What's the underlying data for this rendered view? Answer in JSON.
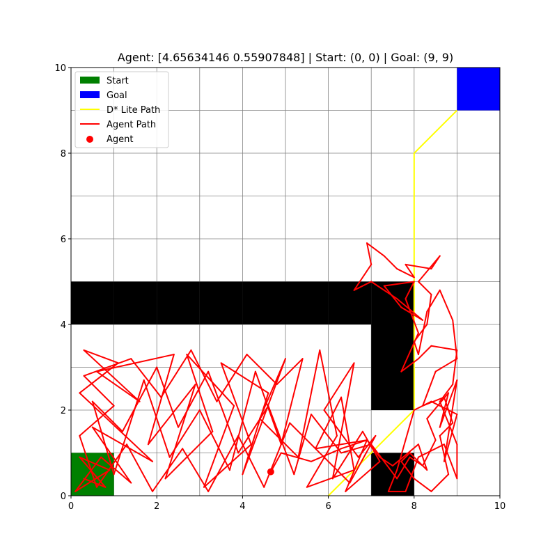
{
  "chart_data": {
    "type": "line",
    "title": "Agent: [4.65634146 0.55907848] | Start: (0, 0) | Goal: (9, 9)",
    "xlabel": "",
    "ylabel": "",
    "xlim": [
      0,
      10
    ],
    "ylim": [
      0,
      10
    ],
    "grid": true,
    "x_ticks": [
      "0",
      "2",
      "4",
      "6",
      "8",
      "10"
    ],
    "y_ticks": [
      "0",
      "2",
      "4",
      "6",
      "8",
      "10"
    ],
    "legend_position": "top-left",
    "legend": [
      {
        "label": "Start",
        "kind": "patch",
        "color": "#008000"
      },
      {
        "label": "Goal",
        "kind": "patch",
        "color": "#0000ff"
      },
      {
        "label": "D* Lite Path",
        "kind": "line",
        "color": "#ffff00"
      },
      {
        "label": "Agent Path",
        "kind": "line",
        "color": "#ff0000"
      },
      {
        "label": "Agent",
        "kind": "marker",
        "color": "#ff0000"
      }
    ],
    "start_cell": [
      0,
      0
    ],
    "goal_cell": [
      9,
      9
    ],
    "obstacle_cells": [
      [
        0,
        4
      ],
      [
        1,
        4
      ],
      [
        2,
        4
      ],
      [
        3,
        4
      ],
      [
        4,
        4
      ],
      [
        5,
        4
      ],
      [
        6,
        4
      ],
      [
        7,
        4
      ],
      [
        7,
        3
      ],
      [
        7,
        2
      ],
      [
        7,
        0
      ]
    ],
    "dstar_path": [
      [
        6,
        0
      ],
      [
        8,
        2
      ],
      [
        8,
        8
      ],
      [
        9,
        9
      ]
    ],
    "agent_position": [
      4.65634146,
      0.55907848
    ],
    "agent_path": [
      [
        0.3,
        0.4
      ],
      [
        0.8,
        0.2
      ],
      [
        0.2,
        0.9
      ],
      [
        0.9,
        0.6
      ],
      [
        0.1,
        0.1
      ],
      [
        0.7,
        0.9
      ],
      [
        1.4,
        0.3
      ],
      [
        0.5,
        1.6
      ],
      [
        1.9,
        0.8
      ],
      [
        0.2,
        2.4
      ],
      [
        1.1,
        3.1
      ],
      [
        0.3,
        3.4
      ],
      [
        1.6,
        2.2
      ],
      [
        0.6,
        2.9
      ],
      [
        2.4,
        3.3
      ],
      [
        1.8,
        1.2
      ],
      [
        2.9,
        2.6
      ],
      [
        2.2,
        0.4
      ],
      [
        3.3,
        1.5
      ],
      [
        2.7,
        3.3
      ],
      [
        3.8,
        2.1
      ],
      [
        3.1,
        0.2
      ],
      [
        4.2,
        1.2
      ],
      [
        3.5,
        3.1
      ],
      [
        4.6,
        2.4
      ],
      [
        4.0,
        0.5
      ],
      [
        5.0,
        3.2
      ],
      [
        4.4,
        1.8
      ],
      [
        5.3,
        0.9
      ],
      [
        5.8,
        3.4
      ],
      [
        6.2,
        1.4
      ],
      [
        5.5,
        0.2
      ],
      [
        6.6,
        0.6
      ],
      [
        6.3,
        2.3
      ],
      [
        5.7,
        1.1
      ],
      [
        6.9,
        1.3
      ],
      [
        6.4,
        0.1
      ],
      [
        7.2,
        0.8
      ],
      [
        6.8,
        1.5
      ],
      [
        6.1,
        0.4
      ],
      [
        6.6,
        3.1
      ],
      [
        5.9,
        2.0
      ],
      [
        6.7,
        0.9
      ],
      [
        7.1,
        1.4
      ],
      [
        6.5,
        0.3
      ],
      [
        5.9,
        0.9
      ],
      [
        5.1,
        1.7
      ],
      [
        4.5,
        0.2
      ],
      [
        3.9,
        1.4
      ],
      [
        3.2,
        0.1
      ],
      [
        2.6,
        1.1
      ],
      [
        1.9,
        0.1
      ],
      [
        1.3,
        1.2
      ],
      [
        0.6,
        0.2
      ],
      [
        0.2,
        1.4
      ],
      [
        1.0,
        2.1
      ],
      [
        0.3,
        2.8
      ],
      [
        1.4,
        3.2
      ],
      [
        2.1,
        2.3
      ],
      [
        2.8,
        3.4
      ],
      [
        3.4,
        2.2
      ],
      [
        4.1,
        3.3
      ],
      [
        4.8,
        2.6
      ],
      [
        5.4,
        3.2
      ],
      [
        4.9,
        1.2
      ],
      [
        4.3,
        2.9
      ],
      [
        3.7,
        0.6
      ],
      [
        3.0,
        2.0
      ],
      [
        2.3,
        0.9
      ],
      [
        1.7,
        2.7
      ],
      [
        1.0,
        0.5
      ],
      [
        0.5,
        2.2
      ],
      [
        1.2,
        1.5
      ],
      [
        2.0,
        3.0
      ],
      [
        2.5,
        1.6
      ],
      [
        3.2,
        2.9
      ],
      [
        3.9,
        1.0
      ],
      [
        4.6,
        2.1
      ],
      [
        5.2,
        0.5
      ],
      [
        5.6,
        1.9
      ],
      [
        6.3,
        1.0
      ],
      [
        7.0,
        1.2
      ],
      [
        7.6,
        0.4
      ],
      [
        7.9,
        0.9
      ],
      [
        8.2,
        0.7
      ],
      [
        8.5,
        1.3
      ],
      [
        8.3,
        1.8
      ],
      [
        8.8,
        2.4
      ],
      [
        8.6,
        1.6
      ],
      [
        9.0,
        2.7
      ],
      [
        8.7,
        0.8
      ],
      [
        9.0,
        1.9
      ],
      [
        8.4,
        2.2
      ],
      [
        8.0,
        2.0
      ],
      [
        7.6,
        0.6
      ],
      [
        7.4,
        0.1
      ],
      [
        7.8,
        0.1
      ],
      [
        8.1,
        0.9
      ],
      [
        8.7,
        1.2
      ],
      [
        9.0,
        0.4
      ],
      [
        9.0,
        1.2
      ],
      [
        8.6,
        2.2
      ],
      [
        8.9,
        2.6
      ],
      [
        9.0,
        3.4
      ],
      [
        8.4,
        3.5
      ],
      [
        8.1,
        3.2
      ],
      [
        7.7,
        2.9
      ],
      [
        8.1,
        3.8
      ],
      [
        7.8,
        4.6
      ],
      [
        8.0,
        5.0
      ],
      [
        7.3,
        4.9
      ],
      [
        7.7,
        4.4
      ],
      [
        8.2,
        4.1
      ],
      [
        7.6,
        4.6
      ],
      [
        7.0,
        5.0
      ],
      [
        6.6,
        4.8
      ],
      [
        7.0,
        5.4
      ],
      [
        6.9,
        5.9
      ],
      [
        7.3,
        5.6
      ],
      [
        7.6,
        5.3
      ],
      [
        8.0,
        5.1
      ],
      [
        7.8,
        5.4
      ],
      [
        8.4,
        5.3
      ],
      [
        8.6,
        5.6
      ],
      [
        8.1,
        5.0
      ],
      [
        8.4,
        4.7
      ],
      [
        8.3,
        4.0
      ],
      [
        8.0,
        3.6
      ],
      [
        8.1,
        3.3
      ],
      [
        8.3,
        4.3
      ],
      [
        8.6,
        4.8
      ],
      [
        8.9,
        4.1
      ],
      [
        9.0,
        3.2
      ],
      [
        8.5,
        2.9
      ],
      [
        8.2,
        2.1
      ],
      [
        8.7,
        2.3
      ],
      [
        8.9,
        1.7
      ],
      [
        8.6,
        1.4
      ],
      [
        8.8,
        0.5
      ],
      [
        8.4,
        0.1
      ],
      [
        8.0,
        0.4
      ],
      [
        7.7,
        0.8
      ],
      [
        7.9,
        1.0
      ],
      [
        8.3,
        0.6
      ],
      [
        8.1,
        1.2
      ],
      [
        7.5,
        0.7
      ],
      [
        7.2,
        0.9
      ],
      [
        6.9,
        1.3
      ],
      [
        6.3,
        1.1
      ],
      [
        5.6,
        0.8
      ],
      [
        4.9,
        1.0
      ],
      [
        4.66,
        0.56
      ]
    ]
  }
}
